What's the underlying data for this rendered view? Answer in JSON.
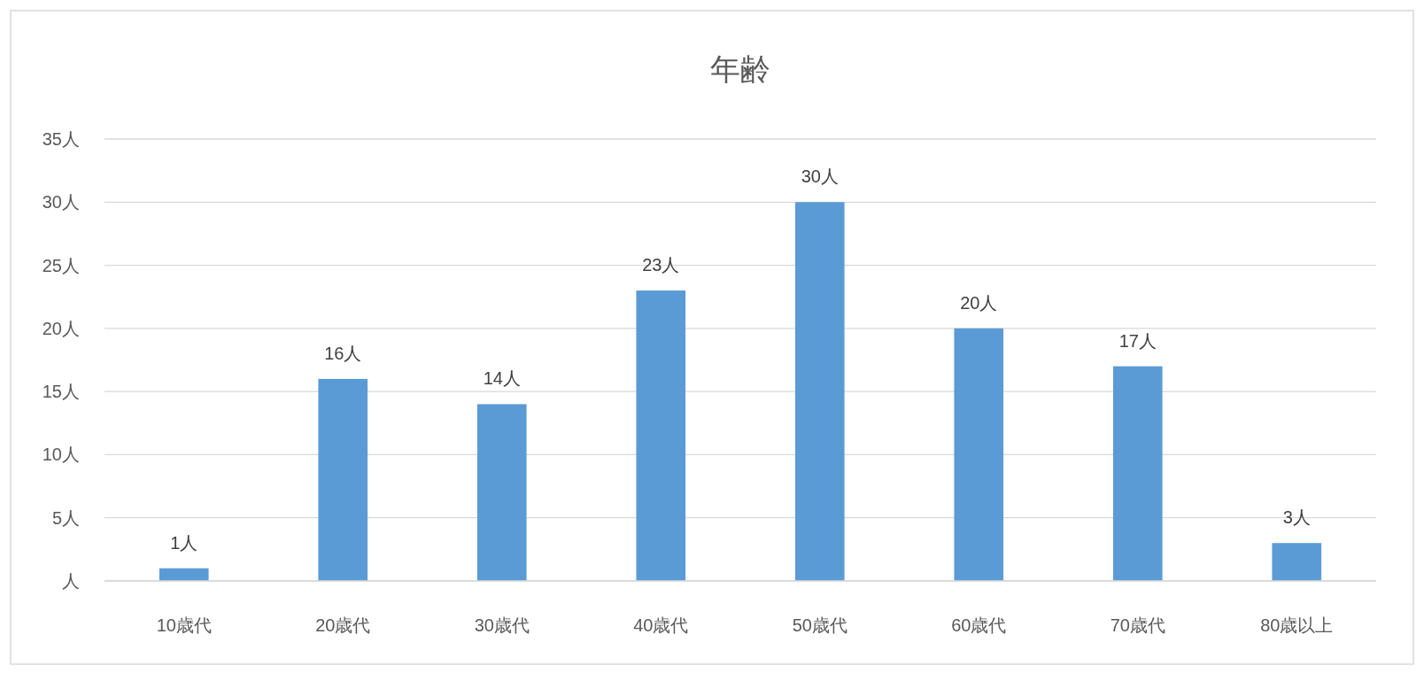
{
  "chart_data": {
    "type": "bar",
    "title": "年齢",
    "categories": [
      "10歳代",
      "20歳代",
      "30歳代",
      "40歳代",
      "50歳代",
      "60歳代",
      "70歳代",
      "80歳以上"
    ],
    "values": [
      1,
      16,
      14,
      23,
      30,
      20,
      17,
      3
    ],
    "color": "#5b9bd5",
    "value_labels": [
      "1人",
      "16人",
      "14人",
      "23人",
      "30人",
      "20人",
      "17人",
      "3人"
    ],
    "ylim": [
      0,
      35
    ],
    "yticks": [
      {
        "value": 0,
        "label": "人"
      },
      {
        "value": 5,
        "label": "5人"
      },
      {
        "value": 10,
        "label": "10人"
      },
      {
        "value": 15,
        "label": "15人"
      },
      {
        "value": 20,
        "label": "20人"
      },
      {
        "value": 25,
        "label": "25人"
      },
      {
        "value": 30,
        "label": "30人"
      },
      {
        "value": 35,
        "label": "35人"
      }
    ],
    "grid": "y"
  }
}
